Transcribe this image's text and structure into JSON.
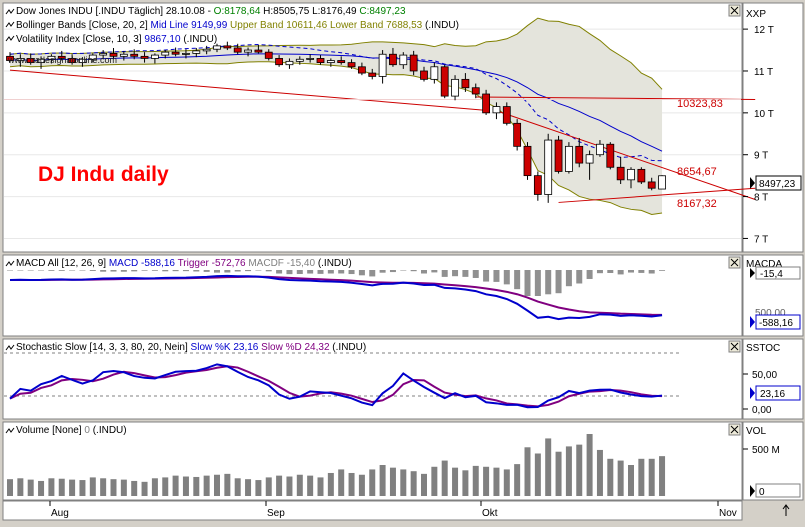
{
  "watermark": "www.tradesignalonline.com",
  "annotation_title": "DJ Indu daily",
  "main_pane": {
    "header_lines": [
      {
        "segments": [
          {
            "text": "Dow Jones INDU [.INDU   Täglich] 28.10.08 - ",
            "color": "#000000"
          },
          {
            "text": "O:8178,64",
            "color": "#008000"
          },
          {
            "text": " H:8505,75 L:8176,49 ",
            "color": "#000000"
          },
          {
            "text": "C:8497,23",
            "color": "#008000"
          }
        ]
      },
      {
        "segments": [
          {
            "text": "Bollinger Bands [Close, 20, 2] ",
            "color": "#000000"
          },
          {
            "text": "Mid Line 9149,99",
            "color": "#0000cc"
          },
          {
            "text": " Upper Band 10611,46",
            "color": "#808000"
          },
          {
            "text": " Lower Band 7688,53",
            "color": "#808000"
          },
          {
            "text": " (.INDU)",
            "color": "#000000"
          }
        ]
      },
      {
        "segments": [
          {
            "text": "Volatility Index [Close, 10, 3] ",
            "color": "#000000"
          },
          {
            "text": "9867,10",
            "color": "#0000cc"
          },
          {
            "text": " (.INDU)",
            "color": "#000000"
          }
        ]
      }
    ],
    "axis_title": "XXP",
    "y_ticks": [
      "12 T",
      "11 T",
      "10 T",
      "9 T",
      "8 T",
      "7 T"
    ],
    "last_value": "8497,23",
    "level_labels": [
      "10323,83",
      "8654,67",
      "8167,32"
    ]
  },
  "macd_pane": {
    "header_segments": [
      {
        "text": "MACD All [12, 26, 9] ",
        "color": "#000000"
      },
      {
        "text": "MACD -588,16",
        "color": "#0000cc"
      },
      {
        "text": " Trigger -572,76",
        "color": "#800080"
      },
      {
        "text": " MACDF -15,40",
        "color": "#808080"
      },
      {
        "text": " (.INDU)",
        "color": "#000000"
      }
    ],
    "axis_title": "MACDA",
    "value_top": "-15,4",
    "value_partial": "500,00",
    "value_bottom": "-588,16"
  },
  "stoch_pane": {
    "header_segments": [
      {
        "text": "Stochastic Slow [14, 3, 3, 80, 20, Nein] ",
        "color": "#000000"
      },
      {
        "text": "Slow %K 23,16",
        "color": "#0000cc"
      },
      {
        "text": " Slow %D 24,32",
        "color": "#800080"
      },
      {
        "text": " (.INDU)",
        "color": "#000000"
      }
    ],
    "axis_title": "SSTOC",
    "y_ticks": [
      "50,00",
      "0,00"
    ],
    "last_value": "23,16"
  },
  "volume_pane": {
    "header_segments": [
      {
        "text": "Volume [None] ",
        "color": "#000000"
      },
      {
        "text": "0",
        "color": "#808080"
      },
      {
        "text": " (.INDU)",
        "color": "#000000"
      }
    ],
    "axis_title": "VOL",
    "y_ticks": [
      "500 M",
      "0"
    ]
  },
  "x_axis": {
    "labels": [
      "Aug",
      "Sep",
      "Okt",
      "Nov"
    ]
  },
  "chart_data": [
    {
      "type": "candlestick",
      "title": "Dow Jones INDU",
      "ylim": [
        6700,
        12600
      ],
      "x_start": "2008-07-21",
      "bars": [
        [
          11350,
          11450,
          11200,
          11250
        ],
        [
          11250,
          11400,
          11100,
          11300
        ],
        [
          11300,
          11420,
          11150,
          11200
        ],
        [
          11200,
          11350,
          11050,
          11280
        ],
        [
          11280,
          11400,
          11180,
          11350
        ],
        [
          11350,
          11480,
          11250,
          11300
        ],
        [
          11300,
          11400,
          11150,
          11200
        ],
        [
          11200,
          11330,
          11100,
          11280
        ],
        [
          11280,
          11420,
          11200,
          11380
        ],
        [
          11380,
          11500,
          11300,
          11420
        ],
        [
          11420,
          11550,
          11300,
          11350
        ],
        [
          11350,
          11480,
          11250,
          11400
        ],
        [
          11400,
          11520,
          11280,
          11350
        ],
        [
          11350,
          11450,
          11200,
          11300
        ],
        [
          11300,
          11420,
          11180,
          11380
        ],
        [
          11380,
          11500,
          11300,
          11450
        ],
        [
          11450,
          11560,
          11350,
          11400
        ],
        [
          11400,
          11520,
          11300,
          11420
        ],
        [
          11420,
          11550,
          11330,
          11480
        ],
        [
          11480,
          11600,
          11400,
          11520
        ],
        [
          11520,
          11650,
          11450,
          11600
        ],
        [
          11600,
          11700,
          11500,
          11550
        ],
        [
          11550,
          11650,
          11400,
          11450
        ],
        [
          11450,
          11560,
          11350,
          11500
        ],
        [
          11500,
          11620,
          11420,
          11450
        ],
        [
          11450,
          11520,
          11250,
          11300
        ],
        [
          11300,
          11380,
          11100,
          11150
        ],
        [
          11150,
          11300,
          11050,
          11230
        ],
        [
          11230,
          11350,
          11150,
          11280
        ],
        [
          11280,
          11400,
          11200,
          11300
        ],
        [
          11300,
          11380,
          11150,
          11200
        ],
        [
          11200,
          11300,
          11100,
          11250
        ],
        [
          11250,
          11350,
          11150,
          11200
        ],
        [
          11200,
          11280,
          11050,
          11100
        ],
        [
          11100,
          11200,
          10900,
          10950
        ],
        [
          10950,
          11050,
          10800,
          10870
        ],
        [
          10870,
          11500,
          10700,
          11400
        ],
        [
          11400,
          11550,
          11100,
          11150
        ],
        [
          11150,
          11450,
          11050,
          11380
        ],
        [
          11380,
          11480,
          10900,
          11000
        ],
        [
          11000,
          11100,
          10750,
          10800
        ],
        [
          10800,
          11200,
          10700,
          11100
        ],
        [
          11100,
          11150,
          10350,
          10400
        ],
        [
          10400,
          10900,
          10300,
          10800
        ],
        [
          10800,
          10950,
          10500,
          10600
        ],
        [
          10600,
          10700,
          10350,
          10450
        ],
        [
          10450,
          10550,
          9950,
          10000
        ],
        [
          10000,
          10250,
          9850,
          10150
        ],
        [
          10150,
          10250,
          9700,
          9750
        ],
        [
          9750,
          9850,
          9100,
          9200
        ],
        [
          9200,
          9300,
          8400,
          8500
        ],
        [
          8500,
          8600,
          7900,
          8050
        ],
        [
          8050,
          9500,
          7850,
          9350
        ],
        [
          9350,
          9450,
          8550,
          8600
        ],
        [
          8600,
          9300,
          8550,
          9200
        ],
        [
          9200,
          9400,
          8700,
          8800
        ],
        [
          8800,
          9100,
          8400,
          9000
        ],
        [
          9000,
          9350,
          8950,
          9250
        ],
        [
          9250,
          9300,
          8650,
          8700
        ],
        [
          8700,
          8950,
          8300,
          8400
        ],
        [
          8400,
          8700,
          8200,
          8650
        ],
        [
          8650,
          8700,
          8300,
          8350
        ],
        [
          8350,
          8450,
          8150,
          8200
        ],
        [
          8180,
          8510,
          8180,
          8497
        ]
      ]
    },
    {
      "type": "bar",
      "title": "Volume",
      "ylim": [
        0,
        700
      ],
      "values": [
        190,
        200,
        185,
        170,
        200,
        195,
        185,
        180,
        210,
        200,
        190,
        185,
        170,
        160,
        200,
        210,
        230,
        220,
        215,
        230,
        240,
        250,
        200,
        190,
        180,
        210,
        230,
        220,
        240,
        230,
        210,
        260,
        300,
        260,
        240,
        300,
        350,
        320,
        300,
        280,
        250,
        330,
        400,
        320,
        290,
        340,
        330,
        320,
        300,
        360,
        550,
        480,
        650,
        500,
        560,
        580,
        700,
        520,
        420,
        400,
        350,
        420,
        420,
        450
      ]
    }
  ]
}
